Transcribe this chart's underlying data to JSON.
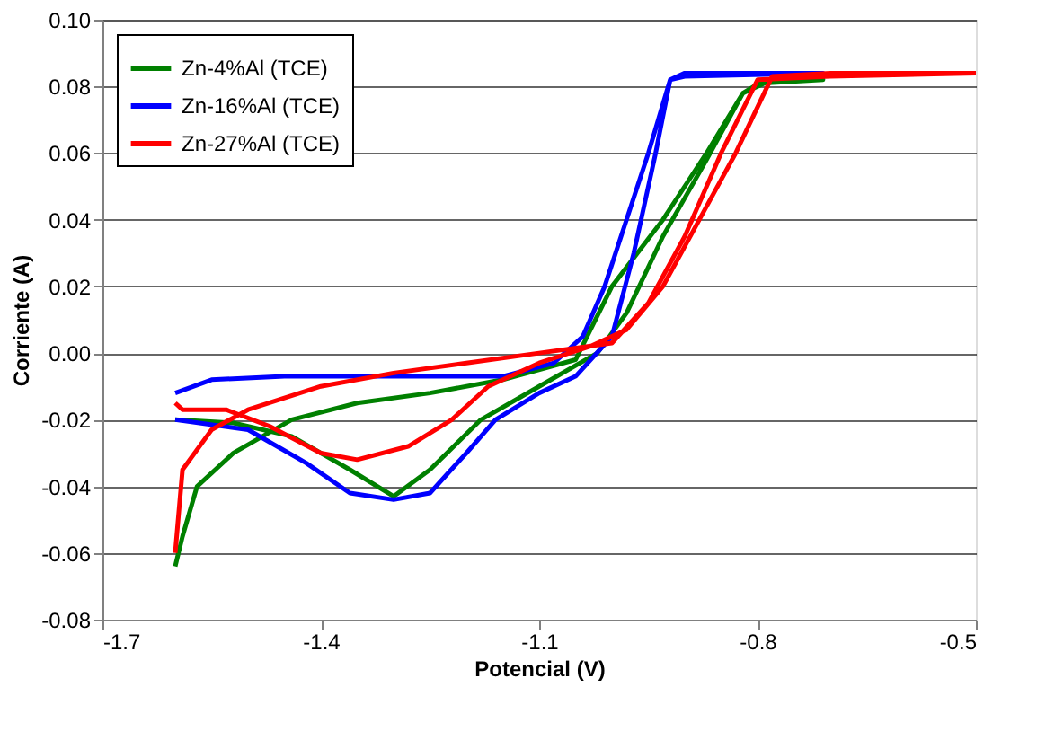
{
  "chart_data": {
    "type": "line",
    "xlabel": "Potencial (V)",
    "ylabel": "Corriente (A)",
    "xlim": [
      -1.7,
      -0.5
    ],
    "xticks": [
      -1.7,
      -1.4,
      -1.1,
      -0.8,
      -0.5
    ],
    "ylim": [
      -0.08,
      0.1
    ],
    "yticks": [
      {
        "value": -0.08,
        "label": "-0.08"
      },
      {
        "value": -0.06,
        "label": "-0.06"
      },
      {
        "value": -0.04,
        "label": "-0.04"
      },
      {
        "value": -0.02,
        "label": "-0.02"
      },
      {
        "value": 0,
        "label": "0.00"
      },
      {
        "value": 0.02,
        "label": "0.02"
      },
      {
        "value": 0.04,
        "label": "0.04"
      },
      {
        "value": 0.06,
        "label": "0.06"
      },
      {
        "value": 0.08,
        "label": "0.08"
      },
      {
        "value": 0.1,
        "label": "0.10"
      }
    ],
    "grid": "y",
    "legend": "top left",
    "marker": "none",
    "line_style": "solid",
    "series": [
      {
        "name": "Zn-4%Al (TCE)",
        "color": "#008000",
        "x": [
          -1.6,
          -1.59,
          -1.57,
          -1.52,
          -1.44,
          -1.35,
          -1.25,
          -1.15,
          -1.05,
          -1.0,
          -0.93,
          -0.87,
          -0.82,
          -0.79,
          -0.71,
          -0.79,
          -0.82,
          -0.87,
          -0.93,
          -0.98,
          -1.02,
          -1.1,
          -1.18,
          -1.25,
          -1.3,
          -1.36,
          -1.44,
          -1.52,
          -1.6
        ],
        "values": [
          -0.064,
          -0.055,
          -0.04,
          -0.03,
          -0.02,
          -0.015,
          -0.012,
          -0.008,
          -0.002,
          0.02,
          0.04,
          0.06,
          0.078,
          0.082,
          0.082,
          0.081,
          0.078,
          0.058,
          0.035,
          0.012,
          0.0,
          -0.01,
          -0.02,
          -0.035,
          -0.043,
          -0.035,
          -0.025,
          -0.021,
          -0.02
        ]
      },
      {
        "name": "Zn-16%Al (TCE)",
        "color": "#0000ff",
        "x": [
          -1.6,
          -1.5,
          -1.42,
          -1.36,
          -1.3,
          -1.25,
          -1.2,
          -1.16,
          -1.1,
          -1.05,
          -1.0,
          -0.97,
          -0.94,
          -0.92,
          -0.9,
          -0.71,
          -0.9,
          -0.92,
          -0.95,
          -0.98,
          -1.01,
          -1.04,
          -1.08,
          -1.15,
          -1.3,
          -1.45,
          -1.55,
          -1.6
        ],
        "values": [
          -0.02,
          -0.023,
          -0.033,
          -0.042,
          -0.044,
          -0.042,
          -0.03,
          -0.02,
          -0.012,
          -0.007,
          0.005,
          0.03,
          0.06,
          0.082,
          0.084,
          0.084,
          0.083,
          0.082,
          0.06,
          0.04,
          0.02,
          0.005,
          -0.003,
          -0.007,
          -0.007,
          -0.007,
          -0.008,
          -0.012
        ]
      },
      {
        "name": "Zn-27%Al (TCE)",
        "color": "#ff0000",
        "x": [
          -1.6,
          -1.59,
          -1.55,
          -1.5,
          -1.4,
          -1.3,
          -1.2,
          -1.1,
          -1.0,
          -0.95,
          -0.9,
          -0.85,
          -0.8,
          -0.7,
          -0.5,
          -0.7,
          -0.78,
          -0.83,
          -0.88,
          -0.93,
          -0.98,
          -1.03,
          -1.1,
          -1.17,
          -1.22,
          -1.28,
          -1.35,
          -1.4,
          -1.47,
          -1.53,
          -1.59,
          -1.6
        ],
        "values": [
          -0.06,
          -0.035,
          -0.023,
          -0.017,
          -0.01,
          -0.006,
          -0.003,
          0.0,
          0.003,
          0.015,
          0.035,
          0.06,
          0.082,
          0.083,
          0.084,
          0.084,
          0.083,
          0.06,
          0.04,
          0.02,
          0.007,
          0.002,
          -0.003,
          -0.01,
          -0.02,
          -0.028,
          -0.032,
          -0.03,
          -0.022,
          -0.017,
          -0.017,
          -0.015
        ]
      }
    ]
  }
}
